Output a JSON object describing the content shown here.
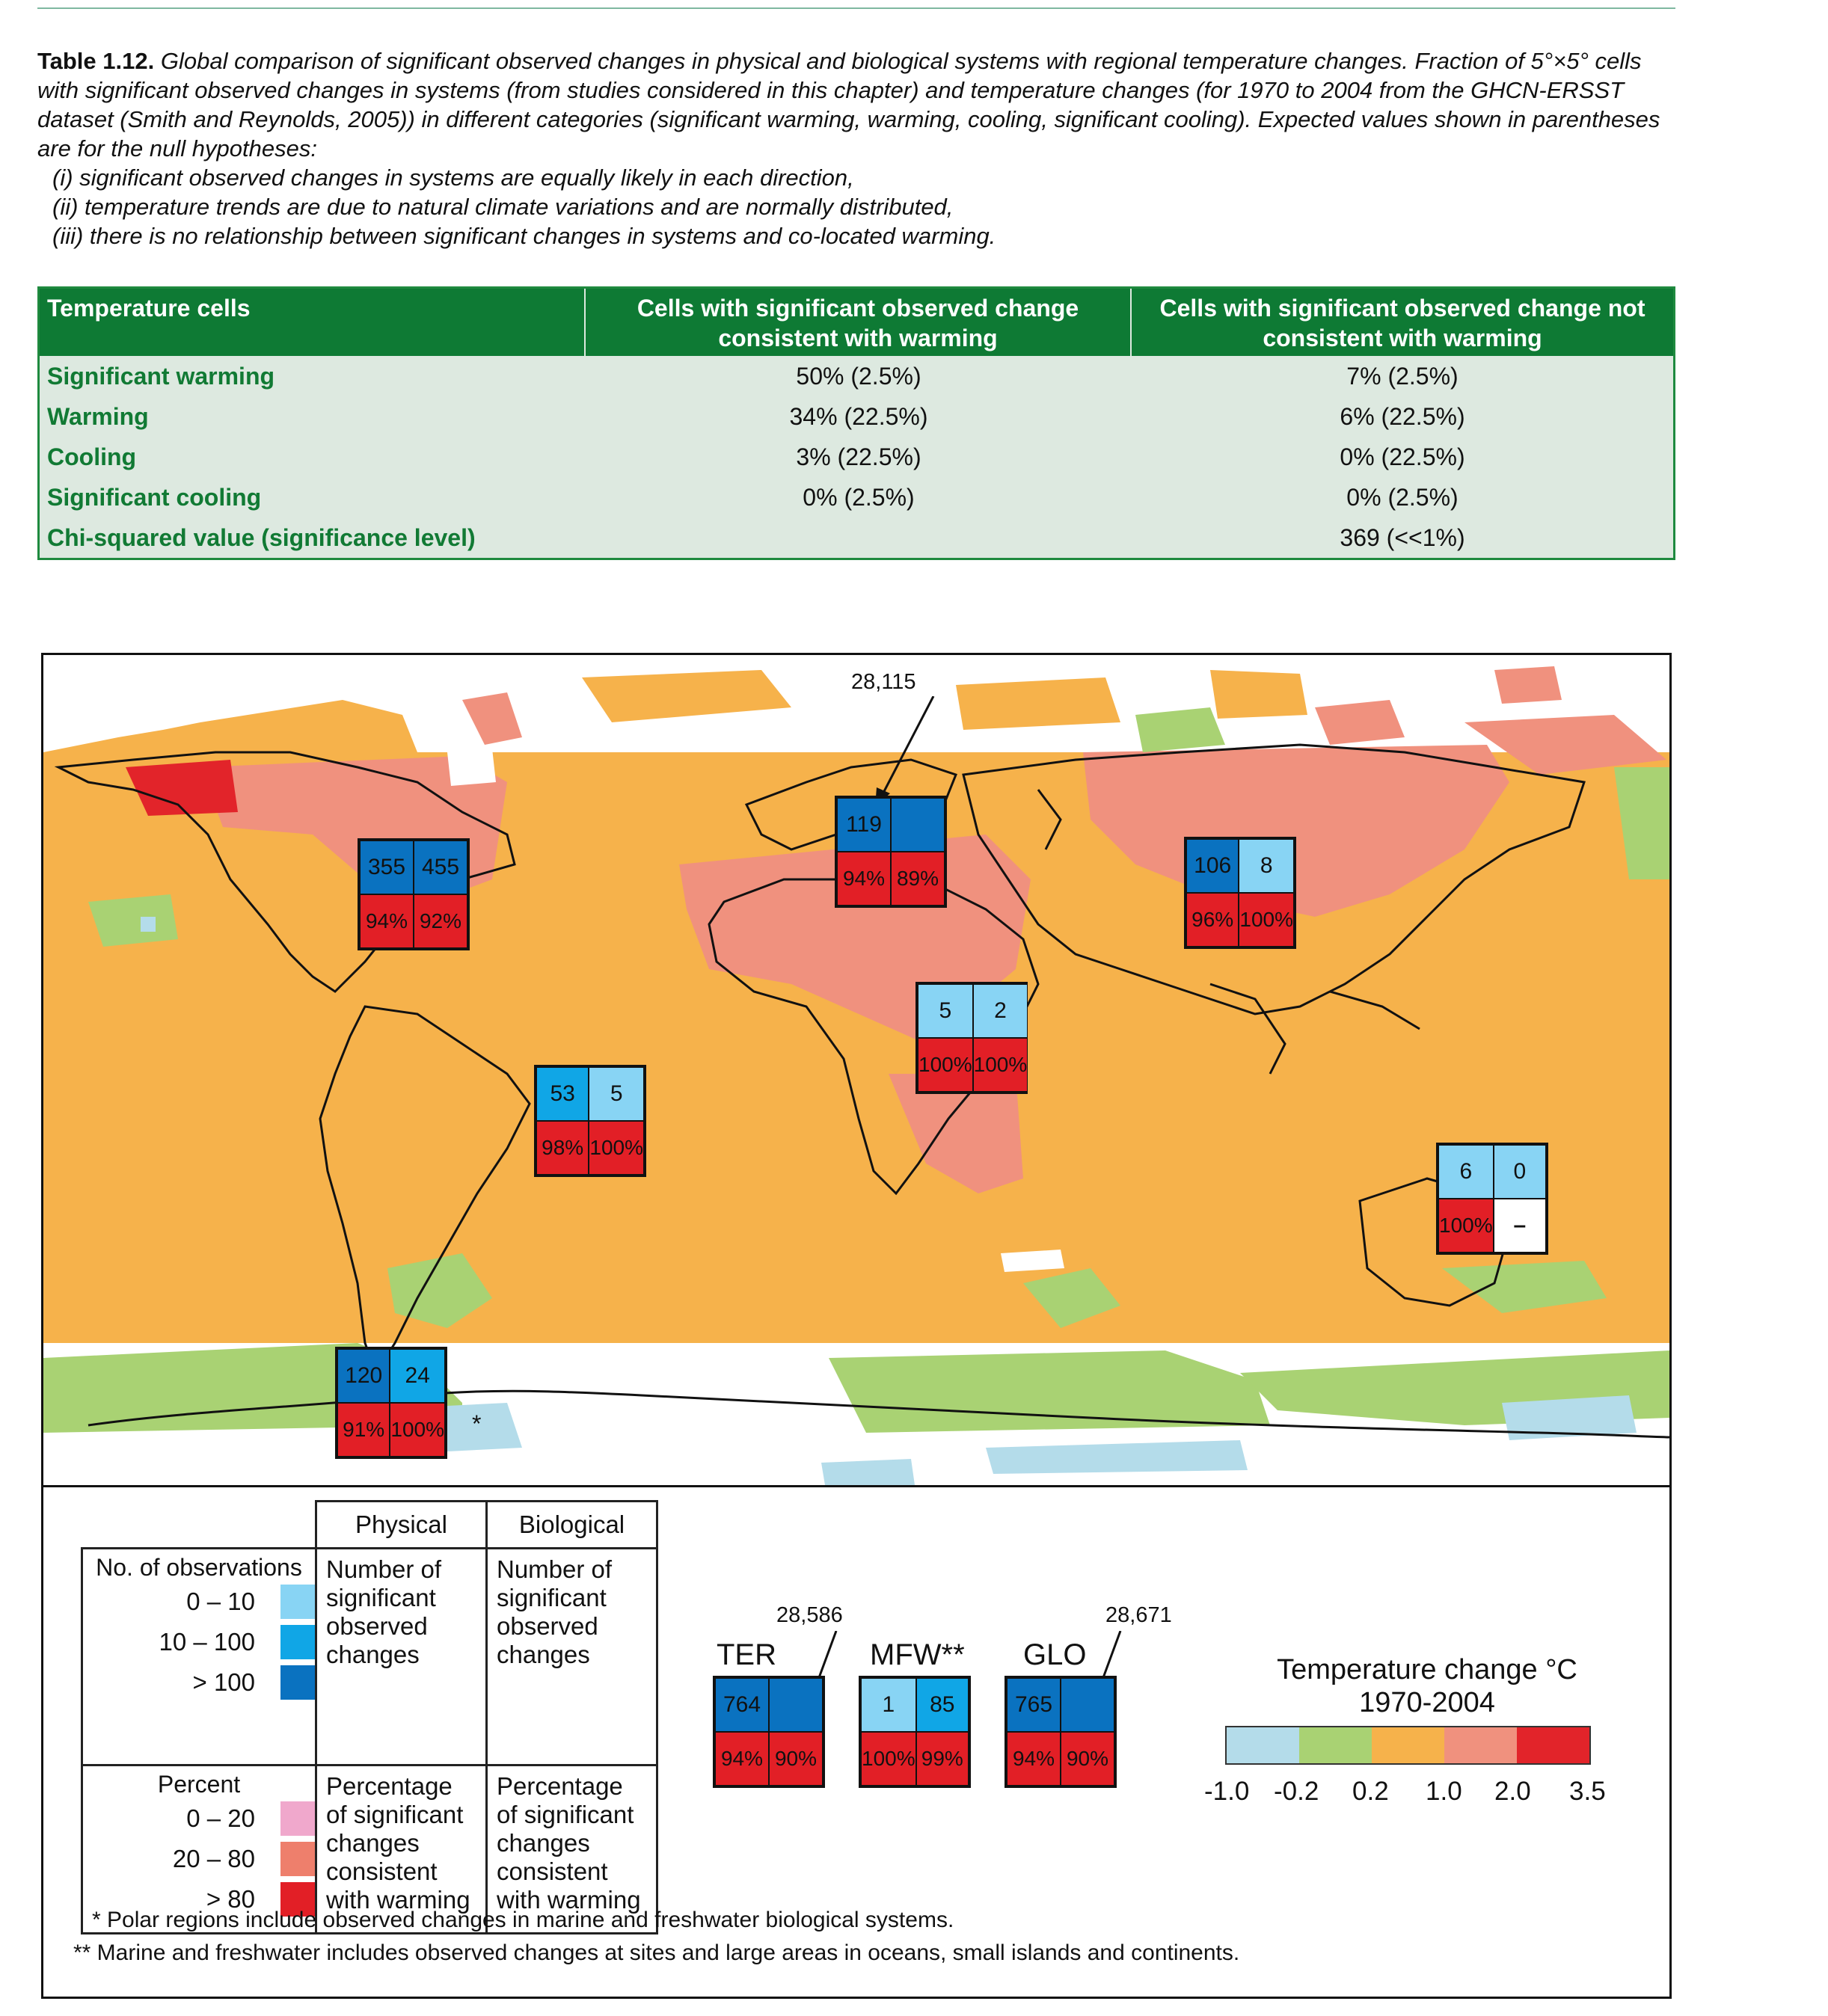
{
  "caption": {
    "label": "Table 1.12.",
    "text": "Global comparison of significant observed changes in physical and biological systems with regional temperature changes. Fraction of 5°×5° cells with significant observed changes in systems (from studies considered in this chapter) and temperature changes (for 1970 to 2004 from the GHCN-ERSST dataset (Smith and Reynolds, 2005)) in different categories (significant warming, warming, cooling, significant cooling). Expected values shown in parentheses are for the null hypotheses:",
    "hypotheses": [
      "(i) significant observed changes in systems are equally likely in each direction,",
      "(ii) temperature trends are due to natural climate variations and are normally distributed,",
      "(iii) there is no relationship between significant changes in systems and co-located warming."
    ]
  },
  "table": {
    "headers": [
      "Temperature cells",
      "Cells with significant observed change consistent with warming",
      "Cells with significant observed change not consistent with warming"
    ],
    "rows": [
      [
        "Significant warming",
        "50% (2.5%)",
        "7% (2.5%)"
      ],
      [
        "Warming",
        "34% (22.5%)",
        "6% (22.5%)"
      ],
      [
        "Cooling",
        "3% (22.5%)",
        "0% (22.5%)"
      ],
      [
        "Significant cooling",
        "0% (2.5%)",
        "0% (2.5%)"
      ],
      [
        "Chi-squared value  (significance level)",
        "",
        "369 (<<1%)"
      ]
    ]
  },
  "map": {
    "callout_europe": "28,115",
    "asterisk": "*",
    "boxes": [
      {
        "region": "north-america",
        "physical": "355",
        "biological": "455",
        "phys_pct": "94%",
        "bio_pct": "92%"
      },
      {
        "region": "europe",
        "physical": "119",
        "biological": "",
        "phys_pct": "94%",
        "bio_pct": "89%"
      },
      {
        "region": "asia",
        "physical": "106",
        "biological": "8",
        "phys_pct": "96%",
        "bio_pct": "100%"
      },
      {
        "region": "africa",
        "physical": "5",
        "biological": "2",
        "phys_pct": "100%",
        "bio_pct": "100%"
      },
      {
        "region": "latin-america",
        "physical": "53",
        "biological": "5",
        "phys_pct": "98%",
        "bio_pct": "100%"
      },
      {
        "region": "australia",
        "physical": "6",
        "biological": "0",
        "phys_pct": "100%",
        "bio_pct": "–"
      },
      {
        "region": "polar",
        "physical": "120",
        "biological": "24",
        "phys_pct": "91%",
        "bio_pct": "100%"
      }
    ]
  },
  "legend": {
    "col_physical": "Physical",
    "col_biological": "Biological",
    "obs_title": "No. of observations",
    "obs_ranges": [
      "0 – 10",
      "10 – 100",
      "> 100"
    ],
    "obs_colors": [
      "#88d4f4",
      "#10a6e6",
      "#0a72c0"
    ],
    "number_desc": "Number of significant observed changes",
    "pct_title": "Percent",
    "pct_ranges": [
      "0 – 20",
      "20 – 80",
      "> 80"
    ],
    "pct_colors": [
      "#f0a8cc",
      "#ee7f6c",
      "#e21f26"
    ],
    "pct_desc": "Percentage of significant changes consistent with warming"
  },
  "summary_boxes": [
    {
      "label": "TER",
      "physical": "764",
      "biological": "",
      "phys_pct": "94%",
      "bio_pct": "90%",
      "callout": "28,586"
    },
    {
      "label": "MFW**",
      "physical": "1",
      "biological": "85",
      "phys_pct": "100%",
      "bio_pct": "99%",
      "callout": ""
    },
    {
      "label": "GLO",
      "physical": "765",
      "biological": "",
      "phys_pct": "94%",
      "bio_pct": "90%",
      "callout": "28,671"
    }
  ],
  "colorbar": {
    "title_line1": "Temperature change °C",
    "title_line2": "1970-2004",
    "colors": [
      "#b4dcea",
      "#a9d273",
      "#f6b24b",
      "#f0917e",
      "#e2242a"
    ],
    "ticks": [
      "-1.0",
      "-0.2",
      "0.2",
      "1.0",
      "2.0",
      "3.5"
    ]
  },
  "footnotes": [
    "* Polar regions include observed changes in marine and freshwater biological systems.",
    "** Marine and freshwater includes observed changes at sites and large areas in oceans, small islands and continents."
  ]
}
